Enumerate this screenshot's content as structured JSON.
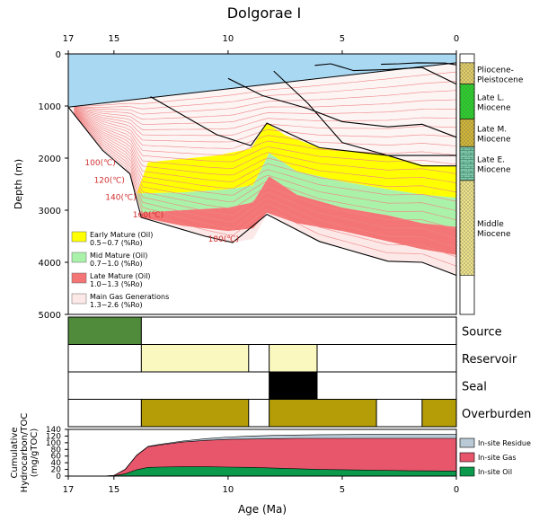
{
  "title": "Dolgorae I",
  "chart_data": [
    {
      "type": "area",
      "name": "burial-history",
      "title": "Dolgorae I",
      "xlabel": "Age (Ma)",
      "ylabel": "Depth (m)",
      "xlim": [
        17,
        0
      ],
      "ylim": [
        0,
        5000
      ],
      "xticks": [
        17,
        15,
        10,
        5,
        0
      ],
      "yticks": [
        0,
        1000,
        2000,
        3000,
        4000,
        5000
      ],
      "water": [
        [
          17,
          0
        ],
        [
          17,
          1020
        ],
        [
          0,
          170
        ],
        [
          0,
          0
        ]
      ],
      "maturity_zones": [
        {
          "name": "Early Mature (Oil)",
          "range": "0.5~0.7 (%Ro)",
          "color": "#ffff00",
          "top": [
            [
              13.5,
              2080
            ],
            [
              10.5,
              1950
            ],
            [
              9,
              1820
            ],
            [
              8.3,
              1330
            ],
            [
              7.5,
              1560
            ],
            [
              6,
              1800
            ],
            [
              5,
              1850
            ],
            [
              3,
              1950
            ],
            [
              1.5,
              2130
            ],
            [
              0,
              2150
            ]
          ],
          "bottom": [
            [
              14,
              2680
            ],
            [
              12,
              2660
            ],
            [
              10,
              2600
            ],
            [
              8.9,
              2520
            ],
            [
              8.2,
              1900
            ],
            [
              7,
              2250
            ],
            [
              5,
              2450
            ],
            [
              3,
              2600
            ],
            [
              1.5,
              2700
            ],
            [
              0,
              2760
            ]
          ]
        },
        {
          "name": "Mid Mature (Oil)",
          "range": "0.7~1.0 (%Ro)",
          "color": "#aaf2aa",
          "top": [
            [
              14,
              2680
            ],
            [
              12,
              2660
            ],
            [
              10,
              2600
            ],
            [
              8.9,
              2520
            ],
            [
              8.2,
              1900
            ],
            [
              7,
              2250
            ],
            [
              5,
              2450
            ],
            [
              3,
              2600
            ],
            [
              1.5,
              2700
            ],
            [
              0,
              2760
            ]
          ],
          "bottom": [
            [
              13.8,
              3050
            ],
            [
              12,
              3000
            ],
            [
              10,
              2950
            ],
            [
              8.9,
              2850
            ],
            [
              8.2,
              2350
            ],
            [
              7,
              2700
            ],
            [
              5,
              2950
            ],
            [
              3,
              3100
            ],
            [
              1.5,
              3250
            ],
            [
              0,
              3320
            ]
          ]
        },
        {
          "name": "Late Mature (Oil)",
          "range": "1.0~1.3 (%Ro)",
          "color": "#f47575",
          "top": [
            [
              13.8,
              3050
            ],
            [
              12,
              3000
            ],
            [
              10,
              2950
            ],
            [
              8.9,
              2850
            ],
            [
              8.2,
              2350
            ],
            [
              7,
              2700
            ],
            [
              5,
              2950
            ],
            [
              3,
              3100
            ],
            [
              1.5,
              3250
            ],
            [
              0,
              3320
            ]
          ],
          "bottom": [
            [
              13.8,
              3140
            ],
            [
              12,
              3300
            ],
            [
              10,
              3400
            ],
            [
              8.9,
              3350
            ],
            [
              8.3,
              3050
            ],
            [
              7,
              3250
            ],
            [
              5,
              3400
            ],
            [
              3,
              3600
            ],
            [
              1.5,
              3750
            ],
            [
              0,
              3860
            ]
          ]
        },
        {
          "name": "Main Gas Generations",
          "range": "1.3~2.6 (%Ro)",
          "color": "#fde8e8",
          "top": [
            [
              13.8,
              3140
            ],
            [
              12,
              3300
            ],
            [
              10,
              3400
            ],
            [
              8.9,
              3350
            ],
            [
              8.3,
              3050
            ],
            [
              7,
              3250
            ],
            [
              5,
              3400
            ],
            [
              3,
              3600
            ],
            [
              1.5,
              3750
            ],
            [
              0,
              3860
            ]
          ],
          "bottom": [
            [
              13.8,
              3140
            ],
            [
              11,
              3500
            ],
            [
              9.8,
              3620
            ],
            [
              8.9,
              3550
            ],
            [
              8.3,
              3080
            ],
            [
              6,
              3600
            ],
            [
              5,
              3700
            ],
            [
              3,
              3980
            ],
            [
              1.5,
              4000
            ],
            [
              0,
              4250
            ]
          ]
        }
      ],
      "horizons": [
        [
          [
            17,
            1020
          ],
          [
            15.5,
            1850
          ],
          [
            14.3,
            2300
          ],
          [
            13.8,
            3140
          ],
          [
            11,
            3500
          ],
          [
            9.8,
            3620
          ],
          [
            8.3,
            3080
          ],
          [
            6,
            3600
          ],
          [
            3,
            3980
          ],
          [
            1.5,
            4000
          ],
          [
            0,
            4250
          ]
        ],
        [
          [
            13.4,
            820
          ],
          [
            10.5,
            1550
          ],
          [
            9,
            1760
          ],
          [
            8.3,
            1330
          ],
          [
            6,
            1800
          ],
          [
            5,
            1850
          ],
          [
            3,
            1950
          ],
          [
            1.5,
            2150
          ],
          [
            0,
            2150
          ]
        ],
        [
          [
            10,
            470
          ],
          [
            8.5,
            800
          ],
          [
            6.5,
            1050
          ],
          [
            5,
            1300
          ],
          [
            3,
            1400
          ],
          [
            1.5,
            1350
          ],
          [
            0,
            1600
          ]
        ],
        [
          [
            8,
            330
          ],
          [
            6.5,
            950
          ],
          [
            5,
            1700
          ],
          [
            3,
            1950
          ],
          [
            1.5,
            1950
          ],
          [
            0,
            1950
          ]
        ],
        [
          [
            6.2,
            220
          ],
          [
            5.5,
            190
          ],
          [
            4.5,
            320
          ],
          [
            3,
            300
          ],
          [
            1.5,
            260
          ],
          [
            0,
            580
          ]
        ],
        [
          [
            3.3,
            200
          ],
          [
            2.5,
            190
          ],
          [
            1.7,
            170
          ],
          [
            0.5,
            175
          ],
          [
            0,
            210
          ]
        ]
      ],
      "isotherms": [
        {
          "label": "100(℃)",
          "age": 15.6,
          "depth": 2140
        },
        {
          "label": "120(℃)",
          "age": 15.2,
          "depth": 2470
        },
        {
          "label": "140(℃)",
          "age": 14.7,
          "depth": 2800
        },
        {
          "label": "160(℃)",
          "age": 13.5,
          "depth": 3140
        },
        {
          "label": "180(℃)",
          "age": 10.2,
          "depth": 3600
        }
      ],
      "stratigraphy": [
        {
          "name": "Pliocene-Pleistocene",
          "lines": [
            "Pliocene-",
            "Pleistocene"
          ],
          "top": 170,
          "bottom": 580,
          "color": "#e4d068",
          "pattern": "dots"
        },
        {
          "name": "Late L. Miocene",
          "lines": [
            "Late L.",
            "Miocene"
          ],
          "top": 580,
          "bottom": 1250,
          "color": "#2bd32b",
          "pattern": "dots"
        },
        {
          "name": "Late M. Miocene",
          "lines": [
            "Late M.",
            "Miocene"
          ],
          "top": 1250,
          "bottom": 1780,
          "color": "#d4b838",
          "pattern": "dots"
        },
        {
          "name": "Late E. Miocene",
          "lines": [
            "Late E.",
            "Miocene"
          ],
          "top": 1780,
          "bottom": 2430,
          "color": "#7cc6a8",
          "pattern": "brick"
        },
        {
          "name": "Middle Miocene",
          "lines": [
            "Middle",
            "Miocene"
          ],
          "top": 2430,
          "bottom": 4250,
          "color": "#efe48a",
          "pattern": "dots"
        }
      ],
      "legend": [
        {
          "label": "Early Mature (Oil)",
          "range": "0.5~0.7 (%Ro)",
          "color": "#ffff00"
        },
        {
          "label": "Mid Mature (Oil)",
          "range": "0.7~1.0 (%Ro)",
          "color": "#aaf2aa"
        },
        {
          "label": "Late Mature (Oil)",
          "range": "1.0~1.3 (%Ro)",
          "color": "#f47575"
        },
        {
          "label": "Main Gas Generations",
          "range": "1.3~2.6 (%Ro)",
          "color": "#fde8e8"
        }
      ]
    },
    {
      "type": "table",
      "name": "petroleum-system-events",
      "xlim": [
        17,
        0
      ],
      "rows": [
        {
          "label": "Source",
          "color": "#4f8b3b",
          "intervals": [
            [
              17,
              13.8
            ]
          ]
        },
        {
          "label": "Reservoir",
          "color": "#fbf8bf",
          "intervals": [
            [
              13.8,
              9.1
            ],
            [
              8.2,
              6.1
            ]
          ]
        },
        {
          "label": "Seal",
          "color": "#000000",
          "intervals": [
            [
              8.2,
              6.1
            ]
          ]
        },
        {
          "label": "Overburden",
          "color": "#b59d07",
          "intervals": [
            [
              13.8,
              9.1
            ],
            [
              8.2,
              3.5
            ],
            [
              1.5,
              0
            ]
          ]
        }
      ]
    },
    {
      "type": "area",
      "name": "cumulative-hydrocarbon",
      "xlabel": "Age (Ma)",
      "ylabel": "Cumulative Hydrocarbon/TOC (mg/gTOC)",
      "ylabel_lines": [
        "Cumulative",
        "Hydrocarbon/TOC",
        "(mg/gTOC)"
      ],
      "xlim": [
        17,
        0
      ],
      "ylim": [
        0,
        140
      ],
      "xticks": [
        17,
        15,
        10,
        5,
        0
      ],
      "yticks": [
        0,
        20,
        40,
        60,
        80,
        100,
        120,
        140
      ],
      "x": [
        15.5,
        15,
        14.5,
        14,
        13.5,
        13,
        12,
        11,
        10,
        9,
        8,
        7,
        6,
        5,
        4,
        3,
        2,
        1,
        0
      ],
      "series": [
        {
          "name": "In-site Oil",
          "color": "#0b9a4b",
          "values": [
            0,
            1,
            7,
            19,
            26,
            27,
            28,
            28,
            27,
            26,
            24,
            22,
            20,
            19,
            18,
            17,
            16,
            15.5,
            15
          ]
        },
        {
          "name": "In-site Gas",
          "color": "#e8566c",
          "values": [
            0,
            2,
            20,
            62,
            88,
            93,
            102,
            107,
            110,
            111,
            112,
            113,
            113,
            113,
            113,
            113,
            113,
            113,
            113
          ]
        },
        {
          "name": "In-site Residue",
          "color": "#b9cad6",
          "values": [
            0,
            2,
            21,
            63,
            89,
            95,
            105,
            112,
            117,
            120,
            122,
            123,
            124,
            124.5,
            125,
            125,
            125,
            125,
            125
          ]
        }
      ],
      "legend": [
        {
          "label": "In-site Residue",
          "color": "#b9cad6"
        },
        {
          "label": "In-site Gas",
          "color": "#e8566c"
        },
        {
          "label": "In-site Oil",
          "color": "#0b9a4b"
        }
      ]
    }
  ]
}
